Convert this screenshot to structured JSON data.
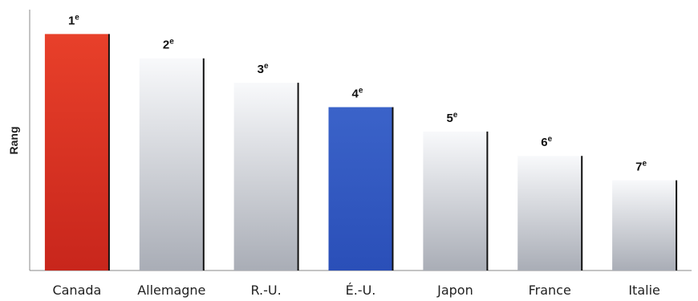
{
  "chart_data": {
    "type": "bar",
    "ylabel": "Rang",
    "xlabel": "",
    "title": "",
    "categories": [
      "Canada",
      "Allemagne",
      "R.-U.",
      "É.-U.",
      "Japon",
      "France",
      "Italie"
    ],
    "rank_numbers": [
      "1",
      "2",
      "3",
      "4",
      "5",
      "6",
      "7"
    ],
    "rank_suffix": "e",
    "values": [
      7,
      6,
      5,
      4,
      3,
      2,
      1
    ],
    "value_meaning": "bar height reflects rank; 1e is tallest",
    "ylim": [
      -2.7,
      8
    ],
    "grid": false,
    "legend": "none",
    "bar_style": [
      "red",
      "gray-gradient",
      "gray-gradient",
      "blue",
      "gray-gradient",
      "gray-gradient",
      "gray-gradient"
    ],
    "colors": {
      "red_top": "#e8402a",
      "red_bottom": "#c8261c",
      "blue_top": "#3b63c9",
      "blue_bottom": "#2a4fb8",
      "gray_top": "#f8f9fb",
      "gray_bottom": "#a9adb6",
      "edge": "#111111",
      "axis": "#888888"
    }
  }
}
